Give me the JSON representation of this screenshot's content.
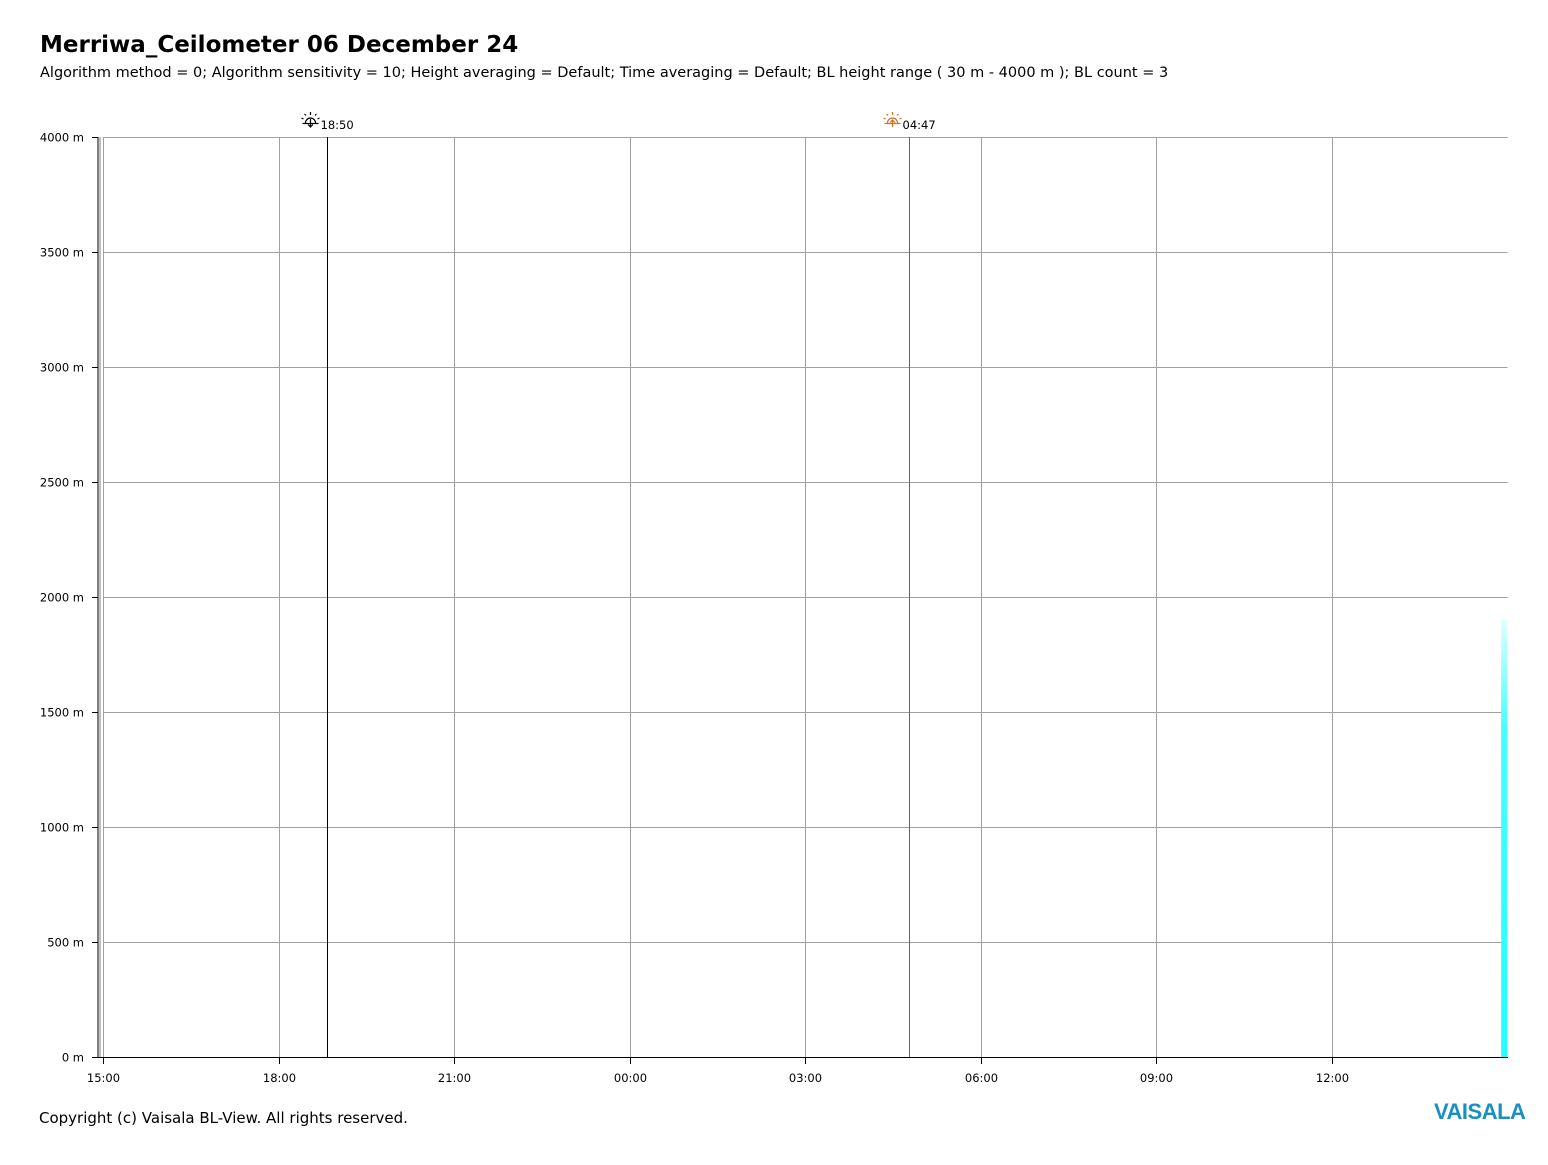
{
  "header": {
    "title": "Merriwa_Ceilometer 06 December 24",
    "subtitle": "Algorithm method = 0; Algorithm sensitivity = 10; Height averaging = Default; Time averaging = Default; BL height range ( 30 m - 4000 m ); BL count = 3"
  },
  "footer": {
    "copyright": "Copyright (c) Vaisala BL-View. All rights reserved.",
    "brand": "VAISALA"
  },
  "colors": {
    "grid": "#a0a0a0",
    "sunset": "#000000",
    "sunrise": "#c84400",
    "sunrise_icon": "#d07020",
    "data": "#33ffff",
    "brand": "#1a8fc4"
  },
  "chart_data": {
    "type": "heatmap",
    "x_axis": {
      "unit": "hours",
      "range_hours_from_start": [
        0,
        24
      ],
      "tick_labels": [
        "15:00",
        "18:00",
        "21:00",
        "00:00",
        "03:00",
        "06:00",
        "09:00",
        "12:00"
      ],
      "tick_hours_from_start": [
        0,
        3,
        6,
        9,
        12,
        15,
        18,
        21
      ]
    },
    "y_axis": {
      "unit": "m",
      "ylim": [
        0,
        4000
      ],
      "tick_values": [
        0,
        500,
        1000,
        1500,
        2000,
        2500,
        3000,
        3500,
        4000
      ],
      "tick_labels": [
        "0 m",
        "500 m",
        "1000 m",
        "1500 m",
        "2000 m",
        "2500 m",
        "3000 m",
        "3500 m",
        "4000 m"
      ]
    },
    "grid": true,
    "events": [
      {
        "name": "sunset",
        "label": "18:50",
        "hours_from_start": 3.83,
        "icon": "sunset-icon"
      },
      {
        "name": "sunrise",
        "label": "04:47",
        "hours_from_start": 13.78,
        "icon": "sunrise-icon"
      }
    ],
    "data_strip": {
      "hours_from_start": [
        23.9,
        24.0
      ],
      "height_m": [
        0,
        1900
      ],
      "color": "#33ffff"
    }
  }
}
